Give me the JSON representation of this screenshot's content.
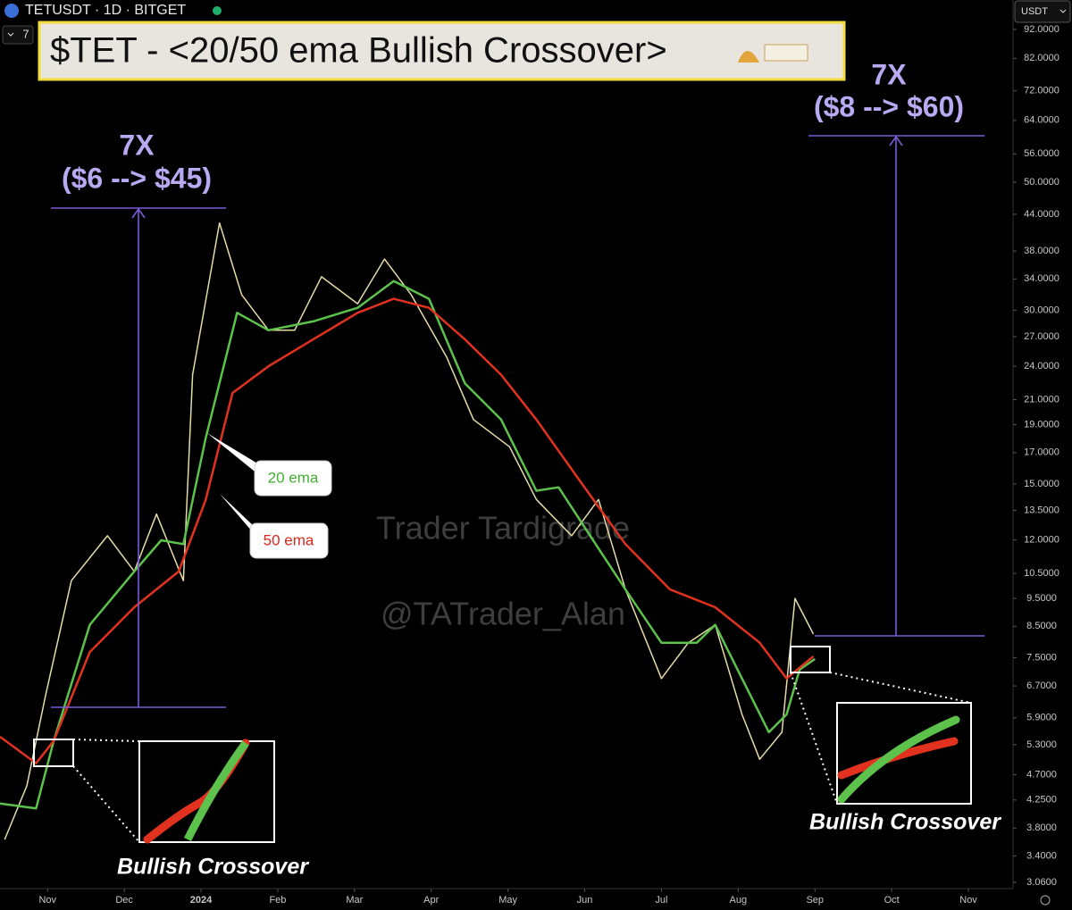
{
  "chart_data": {
    "type": "line",
    "header": "TETUSDT · 1D · BITGET",
    "interval_badge": "7",
    "currency": "USDT",
    "title": "$TET - <20/50 ema Bullish Crossover>",
    "watermarks": [
      "Trader Tardigrade",
      "@TATrader_Alan"
    ],
    "annotations": [
      "7X",
      "($6 --> $45)",
      "7X",
      "($8 --> $60)",
      "Bullish Crossover",
      "Bullish Crossover"
    ],
    "log_y": true,
    "xlim": [
      -0.62,
      12.57
    ],
    "xticks": [
      {
        "value": 0,
        "label": "Nov"
      },
      {
        "value": 1,
        "label": "Dec"
      },
      {
        "value": 2,
        "label": "2024"
      },
      {
        "value": 3,
        "label": "Feb"
      },
      {
        "value": 4,
        "label": "Mar"
      },
      {
        "value": 5,
        "label": "Apr"
      },
      {
        "value": 6,
        "label": "May"
      },
      {
        "value": 7,
        "label": "Jun"
      },
      {
        "value": 8,
        "label": "Jul"
      },
      {
        "value": 9,
        "label": "Aug"
      },
      {
        "value": 10,
        "label": "Sep"
      },
      {
        "value": 11,
        "label": "Oct"
      },
      {
        "value": 12,
        "label": "Nov"
      }
    ],
    "ylim": [
      3.06,
      92
    ],
    "yticks": [
      {
        "value": 92,
        "label": "92.0000"
      },
      {
        "value": 82,
        "label": "82.0000"
      },
      {
        "value": 72,
        "label": "72.0000"
      },
      {
        "value": 64,
        "label": "64.0000"
      },
      {
        "value": 56,
        "label": "56.0000"
      },
      {
        "value": 50,
        "label": "50.0000"
      },
      {
        "value": 44,
        "label": "44.0000"
      },
      {
        "value": 38,
        "label": "38.0000"
      },
      {
        "value": 34,
        "label": "34.0000"
      },
      {
        "value": 30,
        "label": "30.0000"
      },
      {
        "value": 27,
        "label": "27.0000"
      },
      {
        "value": 24,
        "label": "24.0000"
      },
      {
        "value": 21,
        "label": "21.0000"
      },
      {
        "value": 19,
        "label": "19.0000"
      },
      {
        "value": 17,
        "label": "17.0000"
      },
      {
        "value": 15,
        "label": "15.0000"
      },
      {
        "value": 13.5,
        "label": "13.5000"
      },
      {
        "value": 12,
        "label": "12.0000"
      },
      {
        "value": 10.5,
        "label": "10.5000"
      },
      {
        "value": 9.5,
        "label": "9.5000"
      },
      {
        "value": 8.5,
        "label": "8.5000"
      },
      {
        "value": 7.5,
        "label": "7.5000"
      },
      {
        "value": 6.7,
        "label": "6.7000"
      },
      {
        "value": 5.9,
        "label": "5.9000"
      },
      {
        "value": 5.3,
        "label": "5.3000"
      },
      {
        "value": 4.7,
        "label": "4.7000"
      },
      {
        "value": 4.25,
        "label": "4.2500"
      },
      {
        "value": 3.8,
        "label": "3.8000"
      },
      {
        "value": 3.4,
        "label": "3.4000"
      },
      {
        "value": 3.06,
        "label": "3.0600"
      }
    ],
    "series": [
      {
        "color": "#e6dca8",
        "x": [
          -0.56,
          -0.27,
          -0.03,
          0.31,
          0.78,
          1.13,
          1.42,
          1.77,
          1.89,
          2.24,
          2.53,
          2.88,
          3.22,
          3.57,
          4.04,
          4.39,
          4.74,
          5.2,
          5.55,
          6.02,
          6.37,
          6.83,
          7.18,
          7.53,
          8.0,
          8.35,
          8.7,
          9.05,
          9.28,
          9.57,
          9.74,
          9.98
        ],
        "values": [
          3.63,
          4.5,
          6.42,
          10.2,
          12.2,
          10.58,
          13.3,
          10.2,
          23.2,
          42.5,
          31.9,
          27.7,
          27.7,
          34.3,
          30.8,
          36.8,
          31.9,
          24.9,
          19.4,
          17.4,
          14.1,
          12.2,
          14.1,
          9.85,
          6.9,
          7.96,
          8.55,
          5.98,
          5.0,
          5.57,
          9.5,
          8.24
        ]
      },
      {
        "name": "20 ema",
        "color": "#5cc24c",
        "x": [
          -0.62,
          -0.15,
          0.08,
          0.55,
          1.13,
          1.48,
          1.77,
          2.06,
          2.47,
          2.88,
          3.46,
          4.04,
          4.51,
          4.97,
          5.44,
          5.91,
          6.37,
          6.66,
          7.07,
          7.53,
          8.0,
          8.46,
          8.7,
          9.05,
          9.4,
          9.63,
          9.8,
          10.0
        ],
        "values": [
          4.19,
          4.11,
          5.38,
          8.55,
          10.58,
          11.98,
          11.8,
          18.0,
          29.7,
          27.7,
          28.7,
          30.3,
          33.7,
          31.4,
          22.4,
          19.4,
          14.6,
          14.8,
          12.2,
          9.85,
          7.96,
          7.96,
          8.55,
          6.9,
          5.57,
          5.98,
          7.15,
          7.46
        ]
      },
      {
        "name": "50 ema",
        "color": "#e2321f",
        "x": [
          -0.62,
          -0.15,
          0.08,
          0.55,
          1.13,
          1.71,
          2.06,
          2.41,
          2.88,
          3.46,
          4.04,
          4.51,
          4.97,
          5.44,
          5.91,
          6.37,
          6.95,
          7.53,
          8.11,
          8.7,
          9.28,
          9.63,
          9.98
        ],
        "values": [
          5.47,
          4.92,
          5.38,
          7.67,
          9.17,
          10.58,
          14.07,
          21.57,
          24.0,
          26.7,
          29.7,
          31.4,
          30.3,
          26.7,
          23.2,
          19.4,
          15.1,
          11.8,
          9.85,
          9.17,
          7.96,
          6.9,
          7.54
        ]
      }
    ]
  }
}
